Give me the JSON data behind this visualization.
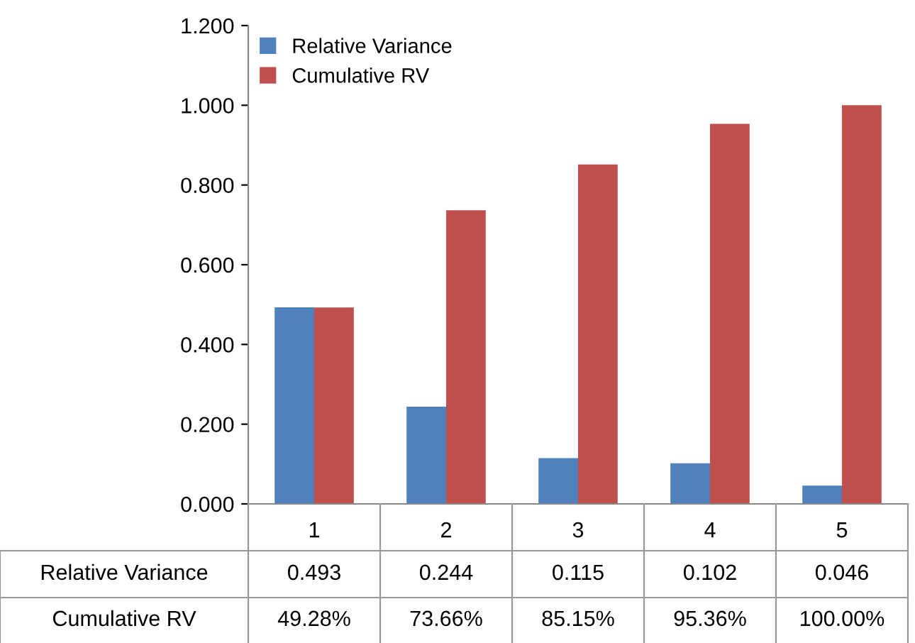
{
  "chart_data": {
    "type": "bar",
    "categories": [
      "1",
      "2",
      "3",
      "4",
      "5"
    ],
    "series": [
      {
        "name": "Relative Variance",
        "color": "#4f81bd",
        "values": [
          0.493,
          0.244,
          0.115,
          0.102,
          0.046
        ],
        "value_labels": [
          "0.493",
          "0.244",
          "0.115",
          "0.102",
          "0.046"
        ]
      },
      {
        "name": "Cumulative RV",
        "color": "#c0504d",
        "values": [
          0.4928,
          0.7366,
          0.8515,
          0.9536,
          1.0
        ],
        "value_labels": [
          "49.28%",
          "73.66%",
          "85.15%",
          "95.36%",
          "100.00%"
        ]
      }
    ],
    "ylim": [
      0,
      1.2
    ],
    "yticks": [
      {
        "value": 0,
        "label": "0.000"
      },
      {
        "value": 0.2,
        "label": "0.200"
      },
      {
        "value": 0.4,
        "label": "0.400"
      },
      {
        "value": 0.6,
        "label": "0.600"
      },
      {
        "value": 0.8,
        "label": "0.800"
      },
      {
        "value": 1.0,
        "label": "1.000"
      },
      {
        "value": 1.2,
        "label": "1.200"
      }
    ],
    "grid": false,
    "legend": "top left"
  }
}
